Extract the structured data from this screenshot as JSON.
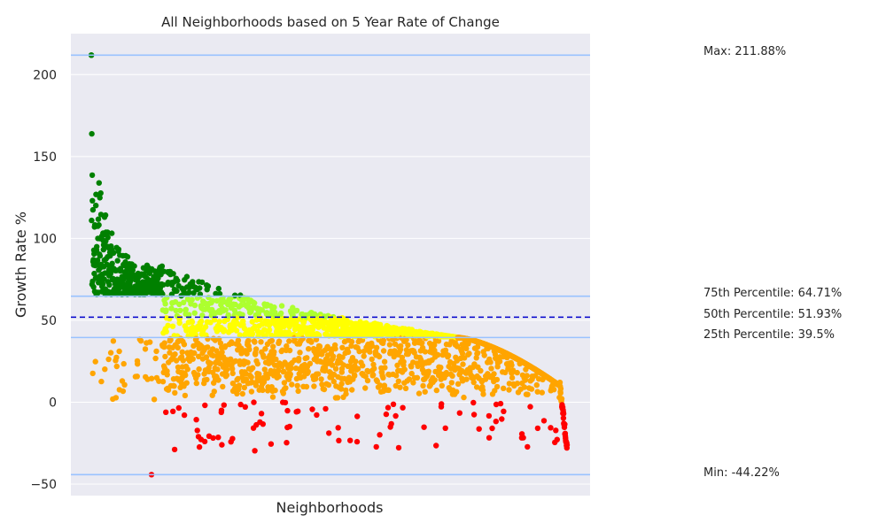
{
  "chart_data": {
    "type": "scatter",
    "title": "All Neighborhoods based on 5 Year Rate of Change",
    "xlabel": "Neighborhoods",
    "ylabel": "Growth Rate %",
    "ylim": [
      -57,
      225
    ],
    "yticks": [
      -50,
      0,
      50,
      100,
      150,
      200
    ],
    "ytick_labels": [
      "−50",
      "0",
      "50",
      "100",
      "150",
      "200"
    ],
    "grid": true,
    "n_points": 2500,
    "stats": {
      "max": 211.88,
      "p75": 64.71,
      "p50": 51.93,
      "p25": 39.5,
      "min": -44.22
    },
    "annotations": [
      {
        "key": "max",
        "text": "Max: 211.88%"
      },
      {
        "key": "p75",
        "text": "75th Percentile: 64.71%"
      },
      {
        "key": "p50",
        "text": "50th Percentile: 51.93%"
      },
      {
        "key": "p25",
        "text": "25th Percentile: 39.5%"
      },
      {
        "key": "min",
        "text": "Min: -44.22%"
      }
    ],
    "colors": {
      "above_p75": "#008000",
      "p50_to_p75": "#adff2f",
      "p25_to_p50": "#ffff00",
      "zero_to_p25": "#ffa500",
      "negative": "#ff0000",
      "stat_lines": "#99c2ff",
      "median_line": "#0000cc",
      "plot_background": "#eaeaf2",
      "grid": "#ffffff"
    }
  }
}
